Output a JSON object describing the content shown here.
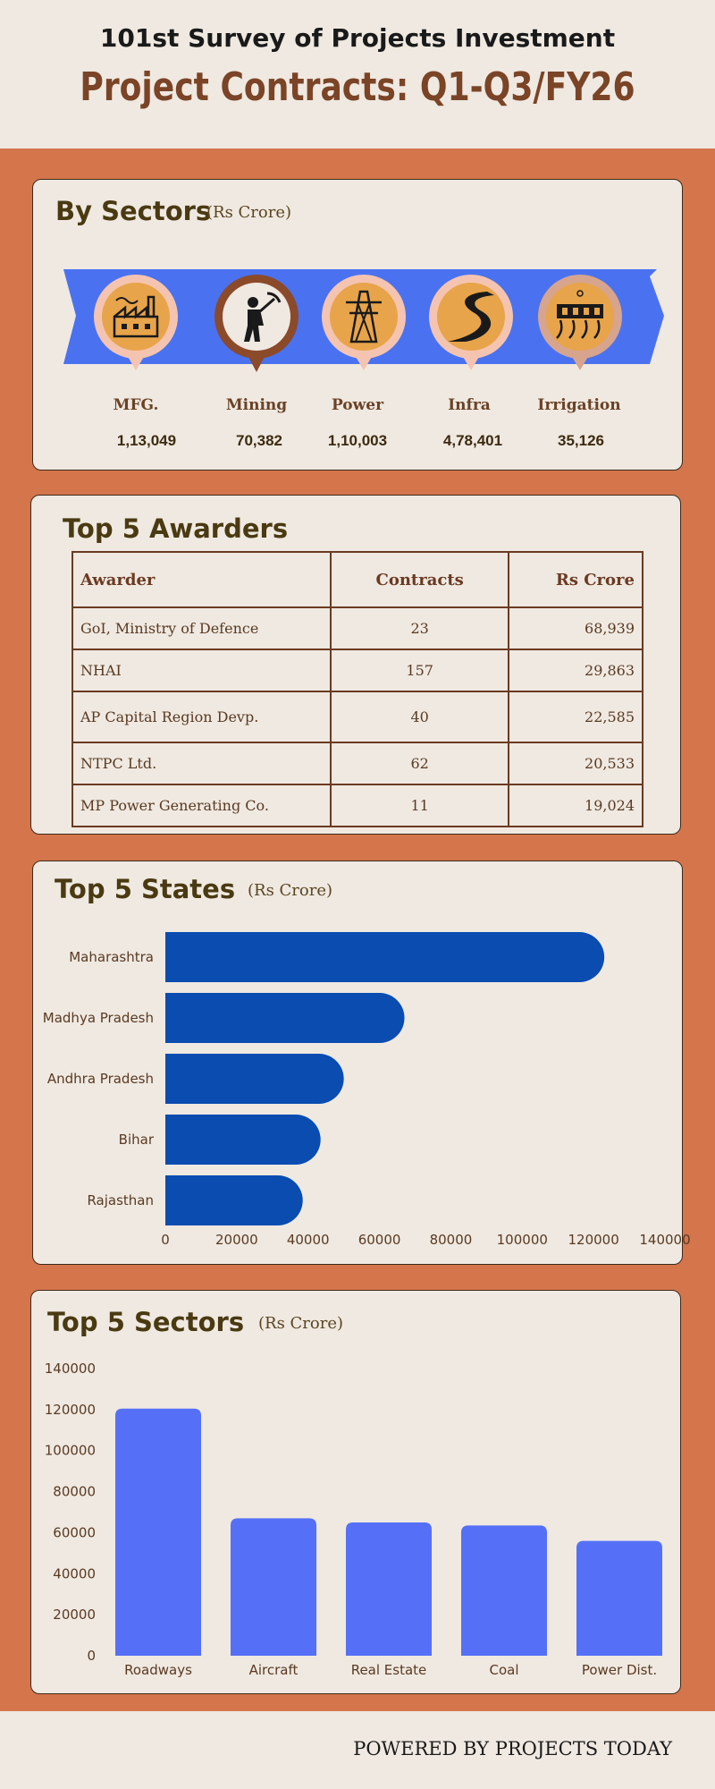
{
  "header": {
    "survey_title": "101st Survey of Projects Investment",
    "main_title": "Project Contracts: Q1-Q3/FY26"
  },
  "sectors_card": {
    "title": "By Sectors",
    "unit": "(Rs Crore)",
    "items": [
      {
        "name": "MFG.",
        "value": "1,13,049",
        "icon": "factory-icon"
      },
      {
        "name": "Mining",
        "value": "70,382",
        "icon": "miner-icon"
      },
      {
        "name": "Power",
        "value": "1,10,003",
        "icon": "power-tower-icon"
      },
      {
        "name": "Infra",
        "value": "4,78,401",
        "icon": "road-icon"
      },
      {
        "name": "Irrigation",
        "value": "35,126",
        "icon": "dam-icon"
      }
    ],
    "colors": {
      "ribbon": "#4a72f0",
      "pin_orange": "#e8a44a",
      "pin_ring": "#f5c4b0",
      "pin_brown": "#8b4a2a"
    }
  },
  "awarders_card": {
    "title": "Top 5 Awarders",
    "headers": [
      "Awarder",
      "Contracts",
      "Rs Crore"
    ],
    "rows": [
      [
        "GoI, Ministry of  Defence",
        "23",
        "68,939"
      ],
      [
        "NHAI",
        "157",
        "29,863"
      ],
      [
        "AP Capital Region Devp.",
        "40",
        "22,585"
      ],
      [
        "NTPC Ltd.",
        "62",
        "20,533"
      ],
      [
        "MP Power Generating Co.",
        "11",
        "19,024"
      ]
    ]
  },
  "states_card": {
    "title": "Top 5 States",
    "unit": "(Rs Crore)"
  },
  "topsectors_card": {
    "title": "Top 5 Sectors",
    "unit": "(Rs Crore)"
  },
  "chart_data": [
    {
      "type": "bar",
      "orientation": "horizontal",
      "categories": [
        "Maharashtra",
        "Madhya Pradesh",
        "Andhra Pradesh",
        "Bihar",
        "Rajasthan"
      ],
      "values": [
        123000,
        67000,
        50000,
        43500,
        38500
      ],
      "xlim": [
        0,
        140000
      ],
      "xticks": [
        "0",
        "20000",
        "40000",
        "60000",
        "80000",
        "100000",
        "120000",
        "140000"
      ],
      "color": "#0a4cb0",
      "grid": false
    },
    {
      "type": "bar",
      "orientation": "vertical",
      "categories": [
        "Roadways",
        "Aircraft",
        "Real Estate",
        "Coal",
        "Power Dist."
      ],
      "values": [
        120500,
        67000,
        65000,
        63500,
        56000
      ],
      "ylim": [
        0,
        140000
      ],
      "yticks": [
        "0",
        "20000",
        "40000",
        "60000",
        "80000",
        "100000",
        "120000",
        "140000"
      ],
      "color": "#5570f7",
      "grid": false
    }
  ],
  "footer": {
    "text": "POWERED BY PROJECTS TODAY"
  }
}
